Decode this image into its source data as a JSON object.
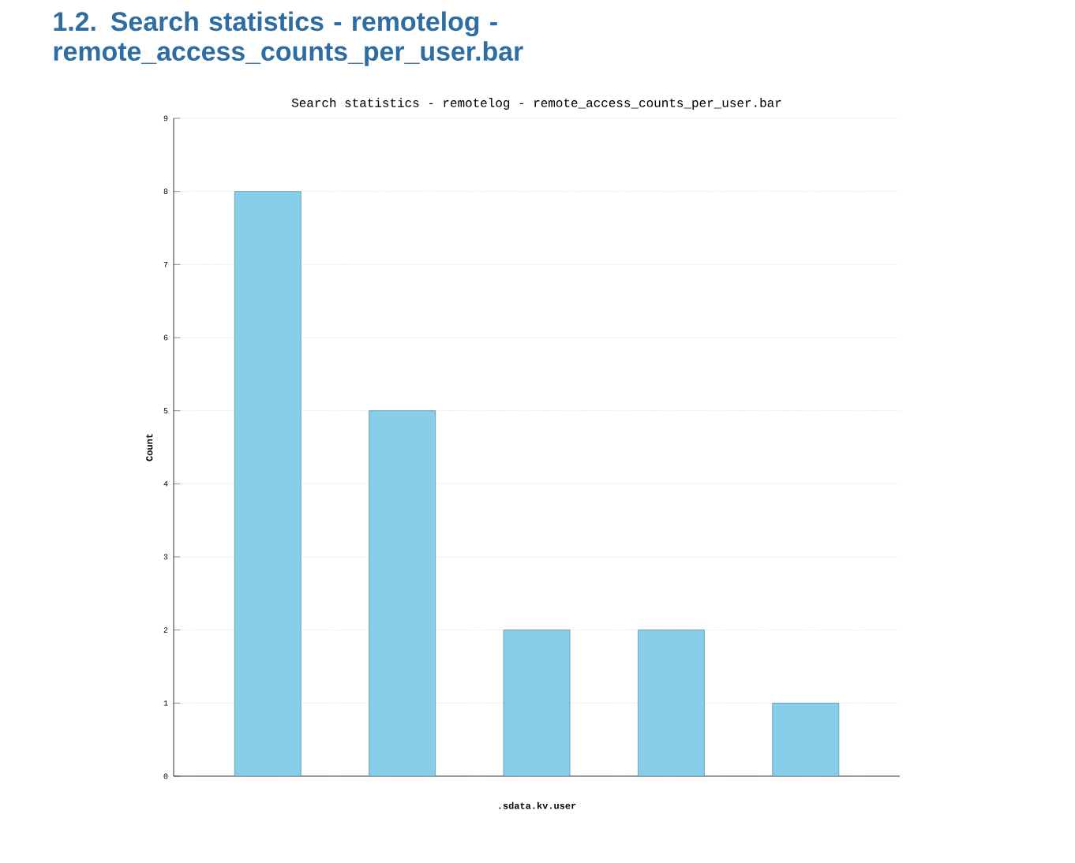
{
  "chart_data": {
    "type": "bar",
    "title": "1.2.  Search statistics - remotelog - remote_access_counts_per_user.bar",
    "subtitle": "Search statistics - remotelog - remote_access_counts_per_user.bar",
    "xlabel": ".sdata.kv.user",
    "ylabel": "Count",
    "categories": [
      null,
      null,
      null,
      null,
      null
    ],
    "values": [
      8,
      5,
      2,
      2,
      1
    ],
    "color": "#87ceeb",
    "ylim": [
      0,
      9
    ],
    "yticks": [
      0,
      1,
      2,
      3,
      4,
      5,
      6,
      7,
      8,
      9
    ],
    "grid": "y"
  }
}
